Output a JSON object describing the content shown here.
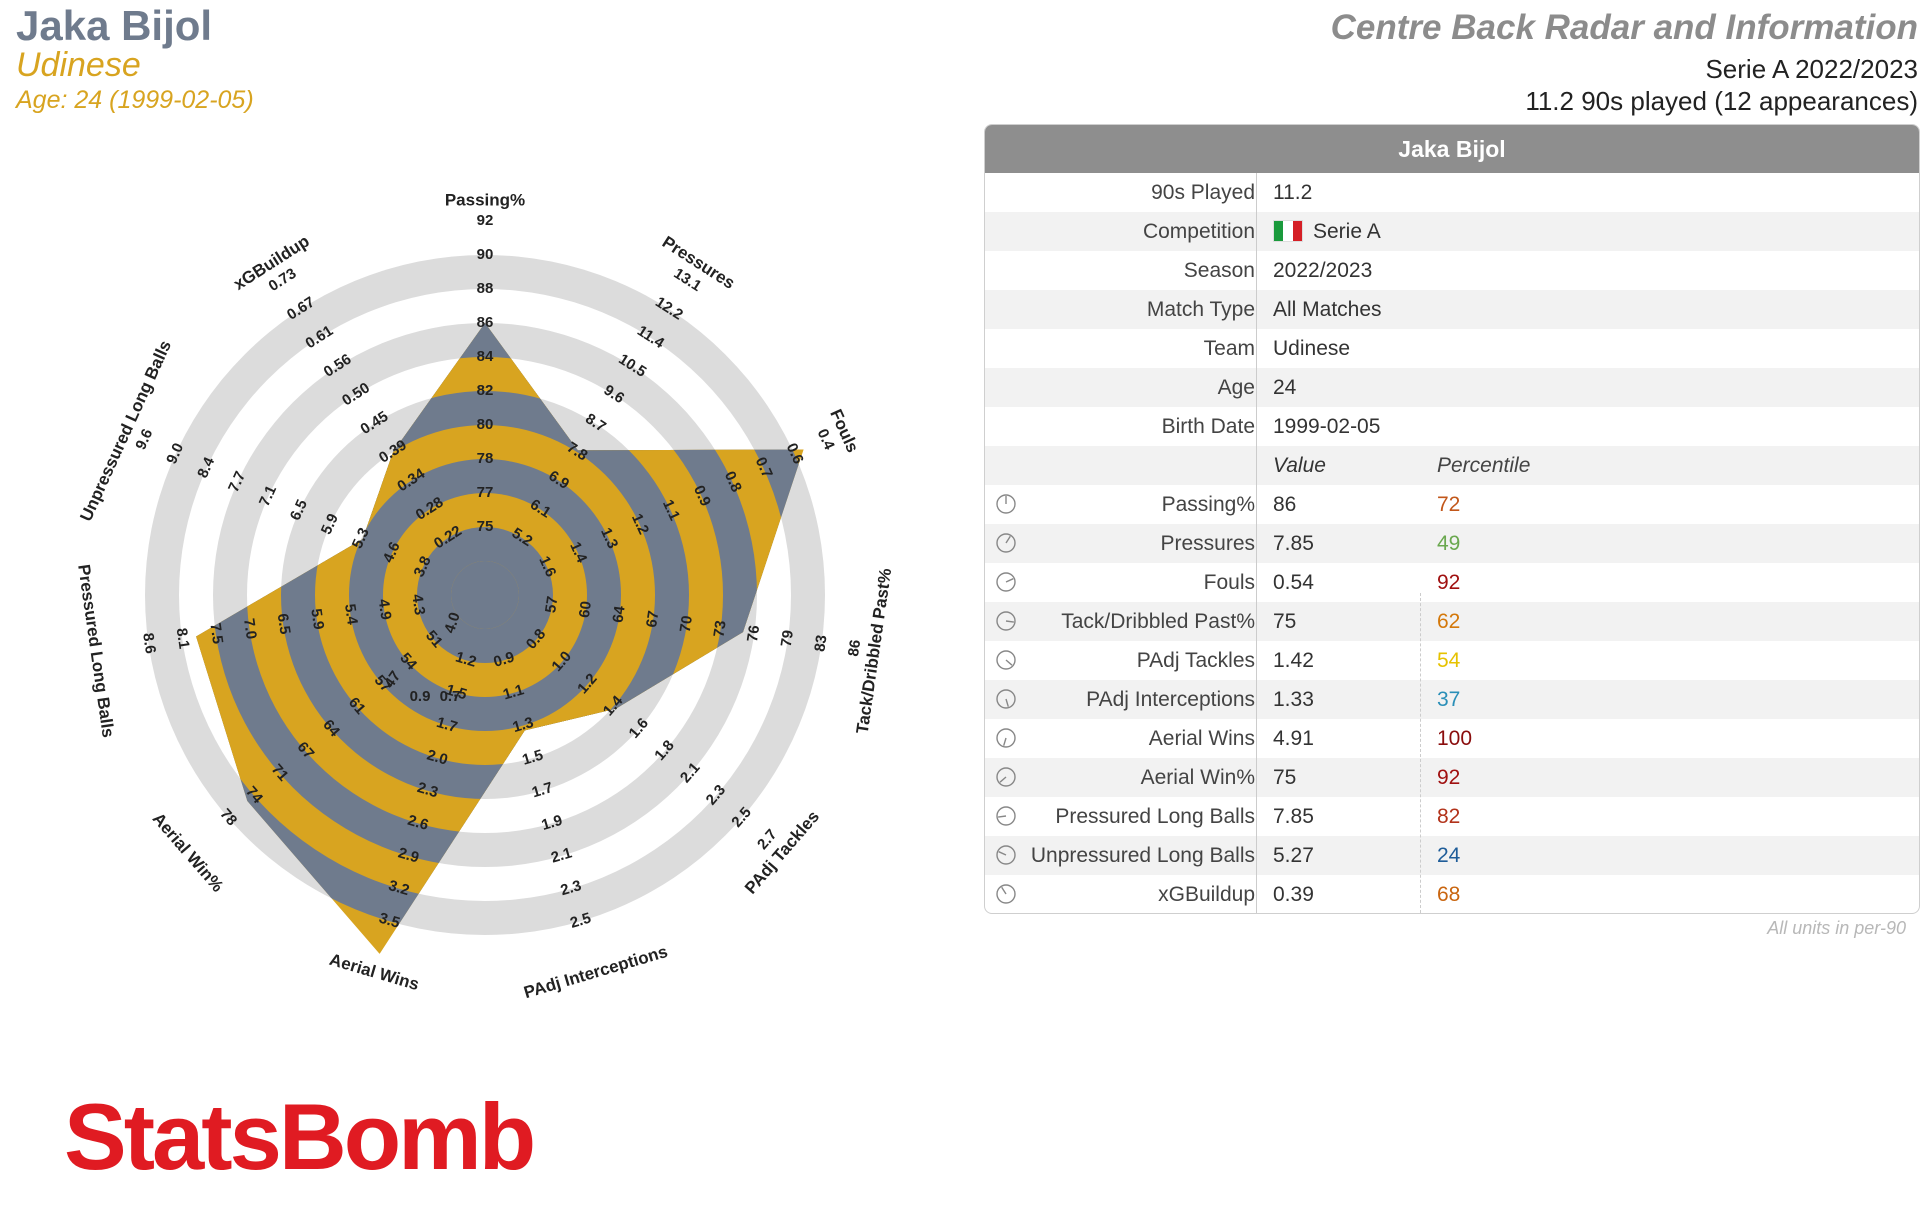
{
  "header": {
    "player_name": "Jaka Bijol",
    "team": "Udinese",
    "age_line": "Age: 24 (1999-02-05)",
    "title": "Centre Back Radar and Information",
    "competition_line": "Serie A 2022/2023",
    "played_line": "11.2 90s played (12 appearances)"
  },
  "colors": {
    "gold": "#d8a420",
    "slate": "#6f7b8d",
    "ring": "#dcdcdc",
    "logo_red": "#e01b22"
  },
  "chart_data": {
    "type": "radar",
    "metrics": [
      {
        "label": "Passing%",
        "value": 86,
        "ticks": [
          "75",
          "77",
          "78",
          "80",
          "82",
          "84",
          "86",
          "88",
          "90",
          "92"
        ]
      },
      {
        "label": "Pressures",
        "value": 7.85,
        "ticks": [
          "5.2",
          "6.1",
          "6.9",
          "7.8",
          "8.7",
          "9.6",
          "10.5",
          "11.4",
          "12.2",
          "13.1"
        ]
      },
      {
        "label": "Fouls",
        "value": 0.54,
        "ticks": [
          "1.6",
          "1.4",
          "1.3",
          "1.2",
          "1.1",
          "0.9",
          "0.8",
          "0.7",
          "0.6",
          "0.4"
        ]
      },
      {
        "label": "Tack/Dribbled Past%",
        "value": 75,
        "ticks": [
          "57",
          "60",
          "64",
          "67",
          "70",
          "73",
          "76",
          "79",
          "83",
          "86"
        ]
      },
      {
        "label": "PAdj Tackles",
        "value": 1.42,
        "ticks": [
          "0.8",
          "1.0",
          "1.2",
          "1.4",
          "1.6",
          "1.8",
          "2.1",
          "2.3",
          "2.5",
          "2.7"
        ]
      },
      {
        "label": "PAdj Interceptions",
        "value": 1.33,
        "ticks": [
          "0.9",
          "1.1",
          "1.3",
          "1.5",
          "1.7",
          "1.9",
          "2.1",
          "2.3",
          "2.5"
        ]
      },
      {
        "label": "Aerial Wins",
        "value": 4.91,
        "ticks": [
          "1.2",
          "1.5",
          "1.7",
          "2.0",
          "2.3",
          "2.6",
          "2.9",
          "3.2",
          "3.5"
        ]
      },
      {
        "label": "Aerial Win%",
        "value": 75,
        "ticks": [
          "51",
          "54",
          "57",
          "61",
          "64",
          "67",
          "71",
          "74",
          "78"
        ]
      },
      {
        "label": "Pressured Long Balls",
        "value": 7.85,
        "ticks": [
          "4.3",
          "4.9",
          "5.4",
          "5.9",
          "6.5",
          "7.0",
          "7.5",
          "8.1",
          "8.6"
        ]
      },
      {
        "label": "Unpressured Long Balls",
        "value": 5.27,
        "ticks": [
          "3.8",
          "4.6",
          "5.3",
          "5.9",
          "6.5",
          "7.1",
          "7.7",
          "8.4",
          "9.0",
          "9.6"
        ]
      },
      {
        "label": "xGBuildup",
        "value": 0.39,
        "ticks": [
          "0.22",
          "0.28",
          "0.34",
          "0.39",
          "0.45",
          "0.50",
          "0.56",
          "0.61",
          "0.67",
          "0.73"
        ]
      }
    ],
    "inner_labels": [
      "4.0",
      "47",
      "0.9",
      "0.7"
    ]
  },
  "table": {
    "title": "Jaka Bijol",
    "info": [
      {
        "label": "90s Played",
        "value": "11.2"
      },
      {
        "label": "Competition",
        "value": "Serie A",
        "flag": true
      },
      {
        "label": "Season",
        "value": "2022/2023"
      },
      {
        "label": "Match Type",
        "value": "All Matches"
      },
      {
        "label": "Team",
        "value": "Udinese"
      },
      {
        "label": "Age",
        "value": "24"
      },
      {
        "label": "Birth Date",
        "value": "1999-02-05"
      }
    ],
    "col_value": "Value",
    "col_percentile": "Percentile",
    "metrics": [
      {
        "label": "Passing%",
        "value": "86",
        "percentile": "72",
        "color": "#c2571a"
      },
      {
        "label": "Pressures",
        "value": "7.85",
        "percentile": "49",
        "color": "#6aa84f"
      },
      {
        "label": "Fouls",
        "value": "0.54",
        "percentile": "92",
        "color": "#a01010"
      },
      {
        "label": "Tack/Dribbled Past%",
        "value": "75",
        "percentile": "62",
        "color": "#d4780a"
      },
      {
        "label": "PAdj Tackles",
        "value": "1.42",
        "percentile": "54",
        "color": "#e6c200"
      },
      {
        "label": "PAdj Interceptions",
        "value": "1.33",
        "percentile": "37",
        "color": "#2a8fb8"
      },
      {
        "label": "Aerial Wins",
        "value": "4.91",
        "percentile": "100",
        "color": "#8a0d0d"
      },
      {
        "label": "Aerial Win%",
        "value": "75",
        "percentile": "92",
        "color": "#a01010"
      },
      {
        "label": "Pressured Long Balls",
        "value": "7.85",
        "percentile": "82",
        "color": "#b2321a"
      },
      {
        "label": "Unpressured Long Balls",
        "value": "5.27",
        "percentile": "24",
        "color": "#1f5d99"
      },
      {
        "label": "xGBuildup",
        "value": "0.39",
        "percentile": "68",
        "color": "#c9650f"
      }
    ],
    "note": "All units in per-90"
  },
  "logo_text": "StatsBomb"
}
